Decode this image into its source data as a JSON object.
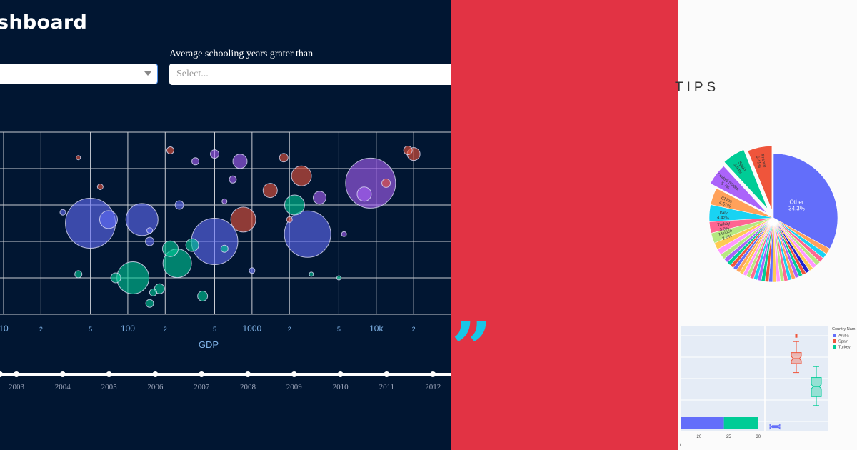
{
  "dashboard": {
    "title": "shboard",
    "filter_label": "Average schooling years grater than",
    "filter_placeholder": "Select...",
    "slider_years": [
      "2003",
      "2004",
      "2005",
      "2006",
      "2007",
      "2008",
      "2009",
      "2010",
      "2011",
      "2012"
    ]
  },
  "colors": {
    "bg_dark": "#011632",
    "red_panel": "#e23344",
    "quote": "#18c6e6",
    "blue": "#636efa",
    "red": "#ef553b",
    "green": "#00cc96",
    "purple": "#ab63fa"
  },
  "quote_glyph": "”",
  "tips": {
    "title": "TIPS"
  },
  "chart_data": [
    {
      "type": "scatter",
      "xlabel": "GDP",
      "xscale": "log",
      "xlim": [
        10,
        25000
      ],
      "ylim": [
        0,
        5
      ],
      "ticks": [
        {
          "value": 10,
          "label": "10"
        },
        {
          "value": 20,
          "label": "2"
        },
        {
          "value": 50,
          "label": "5"
        },
        {
          "value": 100,
          "label": "100"
        },
        {
          "value": 200,
          "label": "2"
        },
        {
          "value": 500,
          "label": "5"
        },
        {
          "value": 1000,
          "label": "1000"
        },
        {
          "value": 2000,
          "label": "2"
        },
        {
          "value": 5000,
          "label": "5"
        },
        {
          "value": 10000,
          "label": "10k"
        },
        {
          "value": 20000,
          "label": "2"
        }
      ],
      "grid": true,
      "bubbles": [
        {
          "x": 800,
          "y": 4.2,
          "s": 20,
          "c": "purple"
        },
        {
          "x": 9000,
          "y": 3.6,
          "s": 70,
          "c": "purple"
        },
        {
          "x": 50,
          "y": 2.5,
          "s": 70,
          "c": "blue"
        },
        {
          "x": 130,
          "y": 2.6,
          "s": 45,
          "c": "blue"
        },
        {
          "x": 500,
          "y": 2.0,
          "s": 65,
          "c": "blue"
        },
        {
          "x": 2800,
          "y": 2.2,
          "s": 65,
          "c": "blue"
        },
        {
          "x": 110,
          "y": 1.0,
          "s": 45,
          "c": "green"
        },
        {
          "x": 850,
          "y": 2.6,
          "s": 35,
          "c": "red"
        },
        {
          "x": 2500,
          "y": 3.8,
          "s": 28,
          "c": "red"
        },
        {
          "x": 2200,
          "y": 3.0,
          "s": 28,
          "c": "green"
        },
        {
          "x": 1400,
          "y": 3.4,
          "s": 20,
          "c": "red"
        },
        {
          "x": 250,
          "y": 1.4,
          "s": 40,
          "c": "green"
        },
        {
          "x": 70,
          "y": 2.6,
          "s": 25,
          "c": "blue"
        },
        {
          "x": 8000,
          "y": 3.3,
          "s": 20,
          "c": "purple"
        },
        {
          "x": 12000,
          "y": 3.6,
          "s": 12,
          "c": "red"
        },
        {
          "x": 20000,
          "y": 4.4,
          "s": 18,
          "c": "red"
        },
        {
          "x": 18000,
          "y": 4.5,
          "s": 12,
          "c": "red"
        },
        {
          "x": 350,
          "y": 4.2,
          "s": 10,
          "c": "purple"
        },
        {
          "x": 700,
          "y": 3.7,
          "s": 10,
          "c": "purple"
        },
        {
          "x": 3500,
          "y": 3.2,
          "s": 18,
          "c": "purple"
        },
        {
          "x": 150,
          "y": 2.0,
          "s": 12,
          "c": "blue"
        },
        {
          "x": 220,
          "y": 1.8,
          "s": 22,
          "c": "green"
        },
        {
          "x": 330,
          "y": 1.9,
          "s": 18,
          "c": "green"
        },
        {
          "x": 80,
          "y": 1.0,
          "s": 14,
          "c": "green"
        },
        {
          "x": 180,
          "y": 0.7,
          "s": 14,
          "c": "green"
        },
        {
          "x": 400,
          "y": 0.5,
          "s": 14,
          "c": "green"
        },
        {
          "x": 150,
          "y": 0.3,
          "s": 11,
          "c": "green"
        },
        {
          "x": 600,
          "y": 1.8,
          "s": 10,
          "c": "green"
        },
        {
          "x": 160,
          "y": 0.6,
          "s": 10,
          "c": "green"
        },
        {
          "x": 40,
          "y": 1.1,
          "s": 10,
          "c": "green"
        },
        {
          "x": 260,
          "y": 3.0,
          "s": 12,
          "c": "blue"
        },
        {
          "x": 500,
          "y": 4.4,
          "s": 12,
          "c": "purple"
        },
        {
          "x": 1800,
          "y": 4.3,
          "s": 12,
          "c": "red"
        },
        {
          "x": 1000,
          "y": 1.2,
          "s": 8,
          "c": "blue"
        },
        {
          "x": 60,
          "y": 3.5,
          "s": 8,
          "c": "red"
        },
        {
          "x": 150,
          "y": 2.3,
          "s": 8,
          "c": "blue"
        },
        {
          "x": 220,
          "y": 4.5,
          "s": 10,
          "c": "red"
        },
        {
          "x": 3000,
          "y": 1.1,
          "s": 6,
          "c": "green"
        },
        {
          "x": 5000,
          "y": 1.0,
          "s": 6,
          "c": "green"
        },
        {
          "x": 600,
          "y": 3.1,
          "s": 7,
          "c": "purple"
        },
        {
          "x": 40,
          "y": 4.3,
          "s": 6,
          "c": "red"
        },
        {
          "x": 30,
          "y": 2.8,
          "s": 8,
          "c": "blue"
        },
        {
          "x": 5500,
          "y": 2.2,
          "s": 7,
          "c": "purple"
        },
        {
          "x": 2000,
          "y": 2.6,
          "s": 8,
          "c": "red"
        }
      ]
    },
    {
      "type": "pie",
      "slices": [
        {
          "label": "Other",
          "value": 34.3,
          "text": "Other\n34.3%",
          "color": "#636efa",
          "pull": 0
        },
        {
          "label": "",
          "value": 1.6,
          "text": "",
          "color": "#ffa15a",
          "pull": 0
        },
        {
          "label": "",
          "value": 1.4,
          "text": "",
          "color": "#19d3f3",
          "pull": 0
        },
        {
          "label": "",
          "value": 1.3,
          "text": "",
          "color": "#ff6692",
          "pull": 0
        },
        {
          "label": "",
          "value": 1.2,
          "text": "",
          "color": "#b6e880",
          "pull": 0
        },
        {
          "label": "",
          "value": 1.2,
          "text": "",
          "color": "#ff97ff",
          "pull": 0
        },
        {
          "label": "",
          "value": 1.1,
          "text": "",
          "color": "#fecb52",
          "pull": 0
        },
        {
          "label": "",
          "value": 1.1,
          "text": "",
          "color": "#2222cc",
          "pull": 0
        },
        {
          "label": "",
          "value": 1.0,
          "text": "",
          "color": "#ef553b",
          "pull": 0
        },
        {
          "label": "",
          "value": 1.0,
          "text": "",
          "color": "#00cc96",
          "pull": 0
        },
        {
          "label": "",
          "value": 1.0,
          "text": "",
          "color": "#ab63fa",
          "pull": 0
        },
        {
          "label": "",
          "value": 1.0,
          "text": "",
          "color": "#ffa15a",
          "pull": 0
        },
        {
          "label": "",
          "value": 1.0,
          "text": "",
          "color": "#19d3f3",
          "pull": 0
        },
        {
          "label": "",
          "value": 1.0,
          "text": "",
          "color": "#ff6692",
          "pull": 0
        },
        {
          "label": "",
          "value": 1.0,
          "text": "",
          "color": "#b6e880",
          "pull": 0
        },
        {
          "label": "",
          "value": 1.0,
          "text": "",
          "color": "#ff97ff",
          "pull": 0
        },
        {
          "label": "",
          "value": 1.0,
          "text": "",
          "color": "#fecb52",
          "pull": 0
        },
        {
          "label": "",
          "value": 1.0,
          "text": "",
          "color": "#636efa",
          "pull": 0
        },
        {
          "label": "",
          "value": 1.0,
          "text": "",
          "color": "#ef553b",
          "pull": 0
        },
        {
          "label": "",
          "value": 1.0,
          "text": "",
          "color": "#00cc96",
          "pull": 0
        },
        {
          "label": "",
          "value": 1.0,
          "text": "",
          "color": "#ab63fa",
          "pull": 0
        },
        {
          "label": "",
          "value": 1.0,
          "text": "",
          "color": "#19d3f3",
          "pull": 0
        },
        {
          "label": "",
          "value": 1.0,
          "text": "",
          "color": "#ff6692",
          "pull": 0
        },
        {
          "label": "",
          "value": 1.0,
          "text": "",
          "color": "#b6e880",
          "pull": 0
        },
        {
          "label": "",
          "value": 1.0,
          "text": "",
          "color": "#ff97ff",
          "pull": 0
        },
        {
          "label": "",
          "value": 1.0,
          "text": "",
          "color": "#fecb52",
          "pull": 0
        },
        {
          "label": "",
          "value": 1.0,
          "text": "",
          "color": "#ffa15a",
          "pull": 0
        },
        {
          "label": "",
          "value": 1.0,
          "text": "",
          "color": "#636efa",
          "pull": 0
        },
        {
          "label": "",
          "value": 1.0,
          "text": "",
          "color": "#ef553b",
          "pull": 0
        },
        {
          "label": "",
          "value": 1.1,
          "text": "",
          "color": "#00cc96",
          "pull": 0
        },
        {
          "label": "",
          "value": 1.2,
          "text": "",
          "color": "#ab63fa",
          "pull": 0
        },
        {
          "label": "",
          "value": 1.4,
          "text": "",
          "color": "#b6e880",
          "pull": 0
        },
        {
          "label": "",
          "value": 1.6,
          "text": "",
          "color": "#ff97ff",
          "pull": 0
        },
        {
          "label": "",
          "value": 1.8,
          "text": "",
          "color": "#fecb52",
          "pull": 0
        },
        {
          "label": "Mexico",
          "value": 2.7,
          "text": "Mexico\n2.7%",
          "color": "#b6e880",
          "pull": 0
        },
        {
          "label": "Turkey",
          "value": 3.0,
          "text": "Turkey\n3.0%",
          "color": "#ff6692",
          "pull": 0
        },
        {
          "label": "Italy",
          "value": 4.42,
          "text": "Italy\n4.42%",
          "color": "#19d3f3",
          "pull": 0
        },
        {
          "label": "China",
          "value": 4.51,
          "text": "China\n4.51%",
          "color": "#ffa15a",
          "pull": 0
        },
        {
          "label": "United States",
          "value": 5.7,
          "text": "United States\n5.7%",
          "color": "#ab63fa",
          "pull": 0.12
        },
        {
          "label": "Spain",
          "value": 5.94,
          "text": "Spain\n5.94%",
          "color": "#00cc96",
          "pull": 0.16
        },
        {
          "label": "France",
          "value": 6.41,
          "text": "France\n6.41%",
          "color": "#ef553b",
          "pull": 0.12
        }
      ]
    },
    {
      "type": "box",
      "legend_title": "Country Nam",
      "series": [
        {
          "name": "Aruba",
          "color": "#636efa"
        },
        {
          "name": "Spain",
          "color": "#ef553b"
        },
        {
          "name": "Turkey",
          "color": "#00cc96"
        }
      ],
      "hbar": {
        "ticks": [
          "20",
          "25",
          "30"
        ],
        "xlim": [
          17,
          31
        ],
        "segments": [
          {
            "from": 17,
            "to": 24.2,
            "color": "#636efa"
          },
          {
            "from": 24.2,
            "to": 30,
            "color": "#00cc96"
          }
        ]
      },
      "axis_fragment": "t",
      "boxes": [
        {
          "name": "Spain",
          "q1": 6.5,
          "median": 7.0,
          "q3": 7.6,
          "low": 5.6,
          "high": 8.7,
          "outliers": [
            9.2,
            9.35
          ]
        },
        {
          "name": "Turkey",
          "q1": 3.2,
          "median": 4.2,
          "q3": 5.1,
          "low": 2.3,
          "high": 6.2,
          "outliers": []
        },
        {
          "name": "Aruba",
          "q1": 0.15,
          "median": 0.2,
          "q3": 0.25,
          "low": 0.1,
          "high": 0.3,
          "outliers": []
        }
      ],
      "ylim": [
        0,
        10
      ]
    }
  ]
}
